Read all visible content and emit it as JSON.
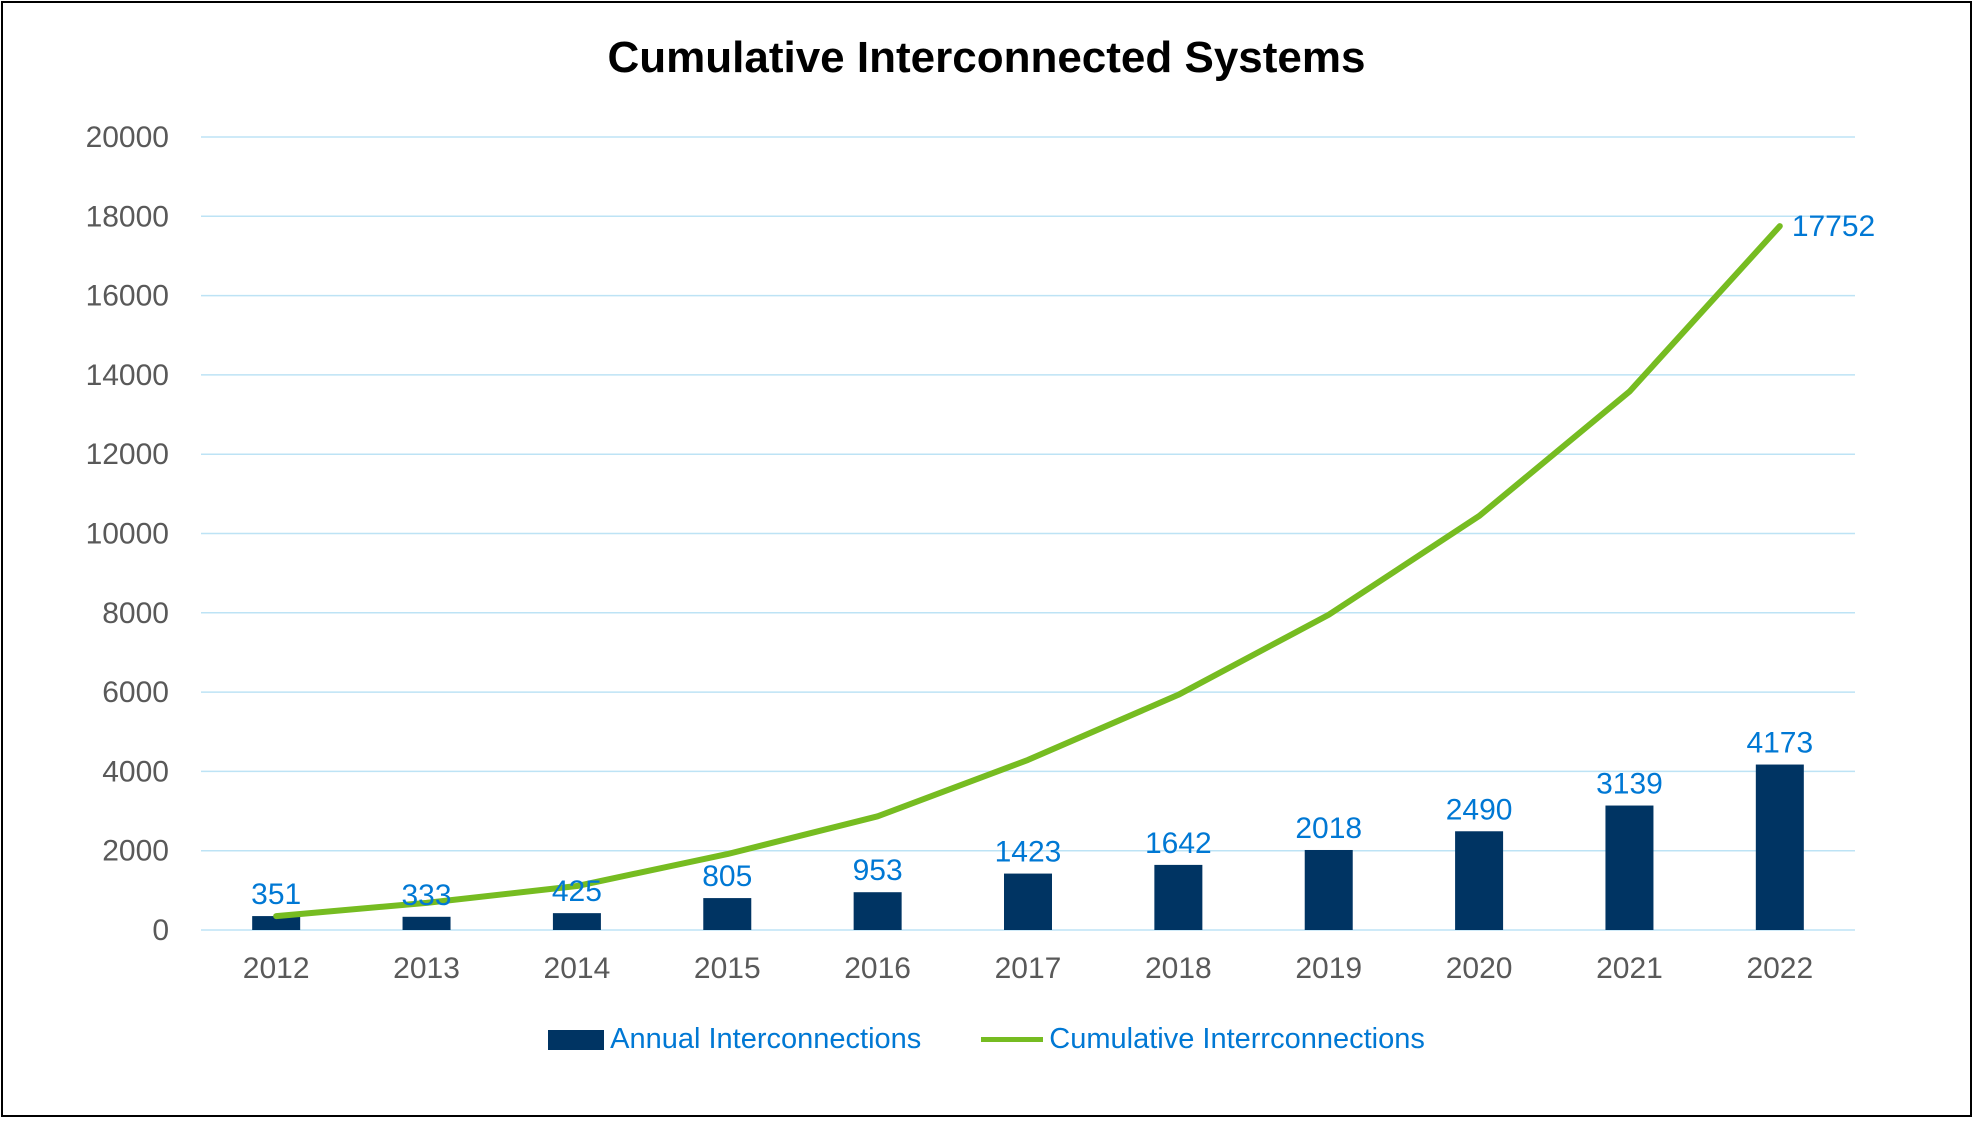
{
  "chart_data": {
    "type": "bar+line",
    "title": "Cumulative Interconnected Systems",
    "categories": [
      "2012",
      "2013",
      "2014",
      "2015",
      "2016",
      "2017",
      "2018",
      "2019",
      "2020",
      "2021",
      "2022"
    ],
    "ylim": [
      0,
      20000
    ],
    "yticks": [
      "0",
      "2000",
      "4000",
      "6000",
      "8000",
      "10000",
      "12000",
      "14000",
      "16000",
      "18000",
      "20000"
    ],
    "grid": true,
    "legend_position": "bottom",
    "series": [
      {
        "name": "Annual Interconnections",
        "type": "bar",
        "color": "#003463",
        "values": [
          351,
          333,
          425,
          805,
          953,
          1423,
          1642,
          2018,
          2490,
          3139,
          4173
        ]
      },
      {
        "name": "Cumulative Interrconnections",
        "type": "line",
        "color": "#76BC21",
        "values": [
          351,
          684,
          1109,
          1914,
          2867,
          4290,
          5932,
          7950,
          10440,
          13579,
          17752
        ]
      }
    ],
    "data_labels": {
      "bar_labels": [
        "351",
        "333",
        "425",
        "805",
        "953",
        "1423",
        "1642",
        "2018",
        "2490",
        "3139",
        "4173"
      ],
      "line_last_label": "17752"
    },
    "colors": {
      "label_text": "#0078D4",
      "grid": "#BDE3F5",
      "tick_text": "#595959"
    }
  }
}
